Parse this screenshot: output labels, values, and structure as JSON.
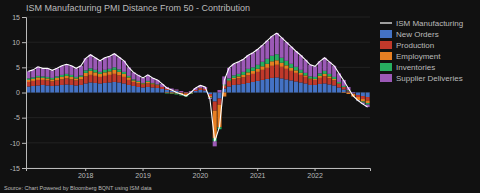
{
  "chart_data": {
    "type": "bar",
    "stacked": true,
    "title": "ISM Manufacturing PMI Distance From 50 - Contribution",
    "annotations": [
      "Source: Chart Powered by Bloomberg BQNT using ISM data"
    ],
    "categories": [
      null,
      null,
      null,
      null,
      null,
      null,
      null,
      null,
      null,
      null,
      null,
      null,
      "2018",
      null,
      null,
      null,
      null,
      null,
      null,
      null,
      null,
      null,
      null,
      null,
      "2019",
      null,
      null,
      null,
      null,
      null,
      null,
      null,
      null,
      null,
      null,
      null,
      "2020",
      null,
      null,
      null,
      null,
      null,
      null,
      null,
      null,
      null,
      null,
      null,
      "2021",
      null,
      null,
      null,
      null,
      null,
      null,
      null,
      null,
      null,
      null,
      null,
      "2022",
      null,
      null,
      null,
      null,
      null,
      null,
      null,
      null,
      null,
      null,
      null
    ],
    "ylim": [
      -15,
      15
    ],
    "yticks": [
      -15,
      -10,
      -5,
      0,
      5,
      10,
      15
    ],
    "grid": true,
    "legend": "upper right",
    "series": [
      {
        "name": "New Orders",
        "type": "bar",
        "color": "#4472c4",
        "values": [
          1.2,
          1.3,
          1.4,
          1.5,
          1.4,
          1.3,
          1.4,
          1.5,
          1.6,
          1.5,
          1.4,
          1.5,
          1.8,
          2.0,
          1.9,
          1.8,
          1.9,
          2.0,
          2.1,
          2.0,
          1.8,
          1.5,
          1.3,
          1.1,
          1.0,
          1.1,
          1.0,
          0.9,
          0.7,
          0.5,
          0.4,
          0.3,
          0.1,
          0.0,
          0.1,
          0.3,
          0.5,
          0.4,
          -0.3,
          -1.8,
          -1.2,
          0.8,
          1.2,
          1.5,
          1.6,
          1.7,
          1.9,
          2.1,
          2.3,
          2.5,
          2.7,
          2.9,
          3.0,
          2.8,
          2.6,
          2.4,
          2.2,
          2.0,
          1.8,
          1.5,
          1.5,
          1.7,
          1.8,
          1.6,
          1.4,
          1.0,
          0.6,
          0.2,
          -0.2,
          -0.5,
          -0.7,
          -0.9
        ]
      },
      {
        "name": "Production",
        "type": "bar",
        "color": "#c0392b",
        "values": [
          0.9,
          1.0,
          1.1,
          1.0,
          1.0,
          0.9,
          1.0,
          1.1,
          1.2,
          1.1,
          1.0,
          1.1,
          1.4,
          1.5,
          1.4,
          1.3,
          1.4,
          1.5,
          1.6,
          1.4,
          1.3,
          1.0,
          0.8,
          0.7,
          0.6,
          0.7,
          0.6,
          0.5,
          0.4,
          0.2,
          0.1,
          0.1,
          -0.1,
          -0.2,
          0.0,
          0.2,
          0.3,
          0.3,
          -0.4,
          -1.8,
          -1.2,
          0.6,
          1.0,
          1.1,
          1.2,
          1.3,
          1.5,
          1.6,
          1.8,
          2.0,
          2.2,
          2.4,
          2.5,
          2.3,
          2.1,
          1.9,
          1.7,
          1.5,
          1.3,
          1.1,
          1.0,
          1.2,
          1.4,
          1.2,
          1.0,
          0.7,
          0.5,
          0.2,
          -0.1,
          -0.4,
          -0.6,
          -0.7
        ]
      },
      {
        "name": "Employment",
        "type": "bar",
        "color": "#e67e22",
        "values": [
          0.4,
          0.4,
          0.5,
          0.4,
          0.4,
          0.4,
          0.5,
          0.5,
          0.5,
          0.5,
          0.4,
          0.5,
          0.7,
          0.8,
          0.7,
          0.6,
          0.7,
          0.7,
          0.8,
          0.7,
          0.6,
          0.5,
          0.3,
          0.3,
          0.2,
          0.3,
          0.2,
          0.1,
          0.0,
          -0.1,
          -0.2,
          -0.2,
          -0.3,
          -0.4,
          -0.2,
          0.0,
          0.1,
          0.0,
          -0.3,
          -5.5,
          -4.5,
          -0.8,
          0.2,
          0.3,
          0.4,
          0.5,
          0.6,
          0.6,
          0.6,
          0.7,
          0.8,
          0.9,
          0.9,
          0.8,
          0.7,
          0.6,
          0.5,
          0.4,
          0.3,
          0.2,
          0.2,
          0.4,
          0.5,
          0.4,
          0.3,
          0.1,
          -0.1,
          -0.3,
          -0.5,
          -0.6,
          -0.5,
          -0.5
        ]
      },
      {
        "name": "Inventories",
        "type": "bar",
        "color": "#27ae60",
        "values": [
          0.3,
          0.3,
          0.3,
          0.3,
          0.3,
          0.3,
          0.3,
          0.4,
          0.4,
          0.4,
          0.3,
          0.3,
          0.5,
          0.5,
          0.5,
          0.4,
          0.5,
          0.5,
          0.5,
          0.5,
          0.4,
          0.3,
          0.2,
          0.2,
          0.1,
          0.2,
          0.1,
          0.1,
          0.0,
          -0.1,
          -0.1,
          -0.2,
          -0.2,
          -0.2,
          -0.1,
          0.0,
          0.0,
          0.0,
          -0.1,
          -0.6,
          -0.4,
          0.2,
          0.4,
          0.5,
          0.5,
          0.6,
          0.7,
          0.7,
          0.8,
          0.9,
          1.0,
          1.1,
          1.2,
          1.0,
          0.9,
          0.8,
          0.7,
          0.6,
          0.5,
          0.4,
          0.4,
          0.5,
          0.6,
          0.5,
          0.4,
          0.3,
          0.2,
          0.1,
          0.0,
          -0.1,
          -0.2,
          -0.3
        ]
      },
      {
        "name": "Supplier Deliveries",
        "type": "bar",
        "color": "#9b59b6",
        "values": [
          1.4,
          1.5,
          1.8,
          1.6,
          1.7,
          1.5,
          1.6,
          1.8,
          1.9,
          1.8,
          1.7,
          1.9,
          2.4,
          2.7,
          2.4,
          2.2,
          2.4,
          2.5,
          2.7,
          2.4,
          2.2,
          1.7,
          1.4,
          1.2,
          1.0,
          1.2,
          1.0,
          0.9,
          0.6,
          0.4,
          0.3,
          0.2,
          0.2,
          0.1,
          0.2,
          0.4,
          0.5,
          0.4,
          -0.2,
          -1.0,
          0.5,
          1.6,
          2.1,
          2.3,
          2.4,
          2.5,
          2.7,
          2.9,
          3.1,
          3.3,
          3.6,
          3.9,
          4.2,
          4.0,
          3.7,
          3.4,
          3.1,
          2.9,
          2.6,
          2.3,
          2.1,
          2.4,
          2.6,
          2.4,
          2.2,
          1.7,
          1.2,
          0.6,
          0.1,
          -0.1,
          -0.3,
          -0.5
        ]
      },
      {
        "name": "ISM Manufacturing",
        "type": "line",
        "color": "#ffffff",
        "values": [
          4.2,
          4.5,
          5.1,
          4.8,
          4.8,
          4.4,
          4.8,
          5.3,
          5.6,
          5.3,
          4.8,
          5.3,
          6.8,
          7.5,
          6.9,
          6.3,
          6.9,
          7.2,
          7.7,
          7.0,
          6.3,
          5.0,
          4.0,
          3.4,
          2.9,
          3.5,
          2.9,
          2.5,
          1.7,
          0.9,
          0.5,
          0.0,
          -0.3,
          -0.7,
          0.0,
          0.9,
          1.4,
          1.1,
          -1.3,
          -9.7,
          -6.8,
          2.4,
          4.9,
          5.7,
          6.1,
          6.6,
          7.4,
          7.9,
          8.6,
          9.4,
          10.3,
          11.2,
          11.8,
          10.9,
          10.0,
          9.1,
          8.2,
          7.4,
          6.5,
          5.5,
          5.2,
          6.2,
          6.9,
          6.1,
          5.3,
          3.8,
          2.4,
          0.8,
          -0.7,
          -1.6,
          -2.3,
          -2.9
        ]
      }
    ]
  }
}
